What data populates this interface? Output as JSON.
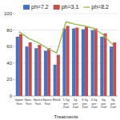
{
  "chart_data": {
    "type": "bar",
    "categories": [
      "Upper\nYost",
      "Spec.\nYost",
      "Space\nYost",
      "Space\nYost",
      "Blank",
      "1.5g\nper\n2sol",
      "2g\nper\n2sol",
      "3.5g\nper\n2sol",
      "4.5g\nper\n2sol",
      "6g\nper\n2sol",
      "9g\nper\n2sol"
    ],
    "series": [
      {
        "name": "ph=7.2",
        "color": "#4472c4",
        "values": [
          72,
          60,
          58,
          55,
          38,
          82,
          82,
          81,
          80,
          72,
          60
        ]
      },
      {
        "name": "ph=3.1",
        "color": "#c0504d",
        "values": [
          75,
          65,
          62,
          58,
          50,
          85,
          83,
          84,
          82,
          76,
          65
        ]
      },
      {
        "name": "ph=8.2",
        "type": "line",
        "color": "#9bbb59",
        "values": [
          78,
          70,
          65,
          58,
          52,
          90,
          87,
          85,
          82,
          74,
          62
        ]
      }
    ],
    "xlabel": "Treatments",
    "ylim": [
      0,
      100
    ],
    "yticks": [
      0,
      20,
      40,
      60,
      80,
      100
    ],
    "grid": true,
    "legend": "top"
  }
}
